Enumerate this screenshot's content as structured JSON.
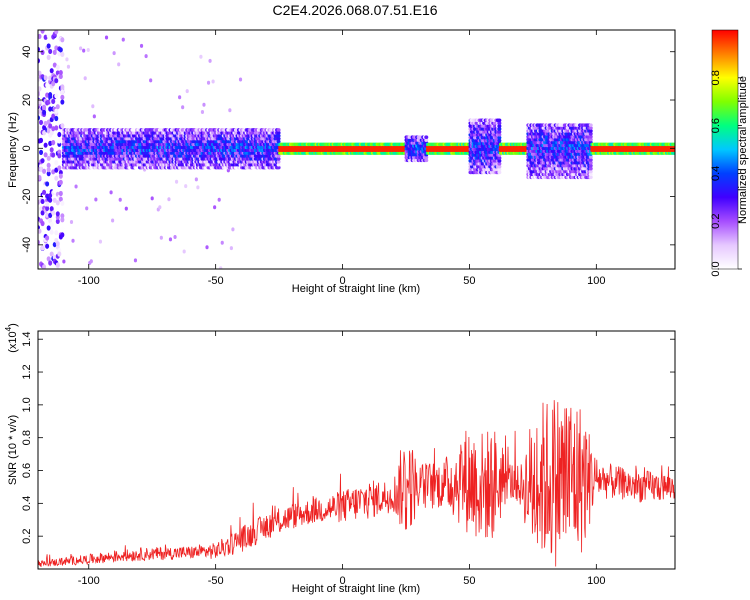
{
  "title": "C2E4.2026.068.07.51.E16",
  "chart_data": [
    {
      "type": "heatmap",
      "xlabel": "Height of straight line (km)",
      "ylabel": "Frequency (Hz)",
      "xlim": [
        -120,
        131
      ],
      "ylim": [
        -50,
        49
      ],
      "xticks": [
        -100,
        -50,
        0,
        50,
        100
      ],
      "yticks": [
        -40,
        -20,
        0,
        20,
        40
      ],
      "colorbar": {
        "label": "Normalized spectral amplitude",
        "range": [
          0,
          1
        ],
        "ticks": [
          0.0,
          0.2,
          0.4,
          0.6,
          0.8
        ],
        "tick_labels": [
          "0.0",
          "0.2",
          "0.4",
          "0.6",
          "0.8"
        ],
        "colors": [
          "#ffffff",
          "#e6c8ff",
          "#a64dff",
          "#4000ff",
          "#0040ff",
          "#00c8ff",
          "#00ff80",
          "#80ff00",
          "#ffff00",
          "#ff8000",
          "#ff0000"
        ]
      },
      "regions": [
        {
          "x_range": [
            -120,
            -110
          ],
          "description": "sparse noise",
          "mean_amplitude": 0.15
        },
        {
          "x_range": [
            -110,
            -25
          ],
          "freq_band": [
            -8,
            8
          ],
          "mean_amplitude": 0.35
        },
        {
          "x_range": [
            -25,
            25
          ],
          "freq_band": [
            -2,
            2
          ],
          "mean_amplitude": 0.95
        },
        {
          "x_range": [
            25,
            33
          ],
          "freq_band": [
            -5,
            5
          ],
          "mean_amplitude": 0.4
        },
        {
          "x_range": [
            33,
            50
          ],
          "freq_band": [
            -2,
            2
          ],
          "mean_amplitude": 0.95
        },
        {
          "x_range": [
            50,
            62
          ],
          "freq_band": [
            -10,
            12
          ],
          "mean_amplitude": 0.35
        },
        {
          "x_range": [
            62,
            73
          ],
          "freq_band": [
            -2,
            2
          ],
          "mean_amplitude": 0.95
        },
        {
          "x_range": [
            73,
            98
          ],
          "freq_band": [
            -12,
            10
          ],
          "mean_amplitude": 0.35
        },
        {
          "x_range": [
            98,
            131
          ],
          "freq_band": [
            -2,
            2
          ],
          "mean_amplitude": 0.95
        }
      ]
    },
    {
      "type": "line",
      "xlabel": "Height of straight line (km)",
      "ylabel": "SNR (10 * v/v)",
      "y_scale_label": "(x10",
      "y_scale_exp": "4",
      "y_scale_close": ")",
      "xlim": [
        -120,
        131
      ],
      "ylim": [
        0,
        1.45
      ],
      "xticks": [
        -100,
        -50,
        0,
        50,
        100
      ],
      "yticks": [
        0.2,
        0.4,
        0.6,
        0.8,
        1.0,
        1.2,
        1.4
      ],
      "ytick_labels": [
        "0.2",
        "0.4",
        "0.6",
        "0.8",
        "1.0",
        "1.2",
        "1.4"
      ],
      "color": "#ee2222",
      "envelope": {
        "x": [
          -120,
          -100,
          -80,
          -60,
          -50,
          -40,
          -30,
          -20,
          -10,
          0,
          10,
          20,
          25,
          30,
          40,
          50,
          55,
          60,
          65,
          70,
          75,
          80,
          85,
          90,
          95,
          100,
          110,
          120,
          131
        ],
        "y": [
          0.03,
          0.06,
          0.09,
          0.1,
          0.11,
          0.18,
          0.26,
          0.32,
          0.36,
          0.38,
          0.42,
          0.45,
          0.52,
          0.5,
          0.52,
          0.55,
          0.5,
          0.52,
          0.55,
          0.5,
          0.52,
          0.55,
          0.55,
          0.55,
          0.55,
          0.55,
          0.52,
          0.5,
          0.5
        ],
        "noise": [
          0.02,
          0.03,
          0.04,
          0.04,
          0.05,
          0.08,
          0.08,
          0.08,
          0.08,
          0.1,
          0.12,
          0.1,
          0.35,
          0.15,
          0.15,
          0.35,
          0.35,
          0.35,
          0.12,
          0.12,
          0.45,
          0.5,
          0.55,
          0.55,
          0.45,
          0.12,
          0.1,
          0.1,
          0.08
        ]
      }
    }
  ]
}
